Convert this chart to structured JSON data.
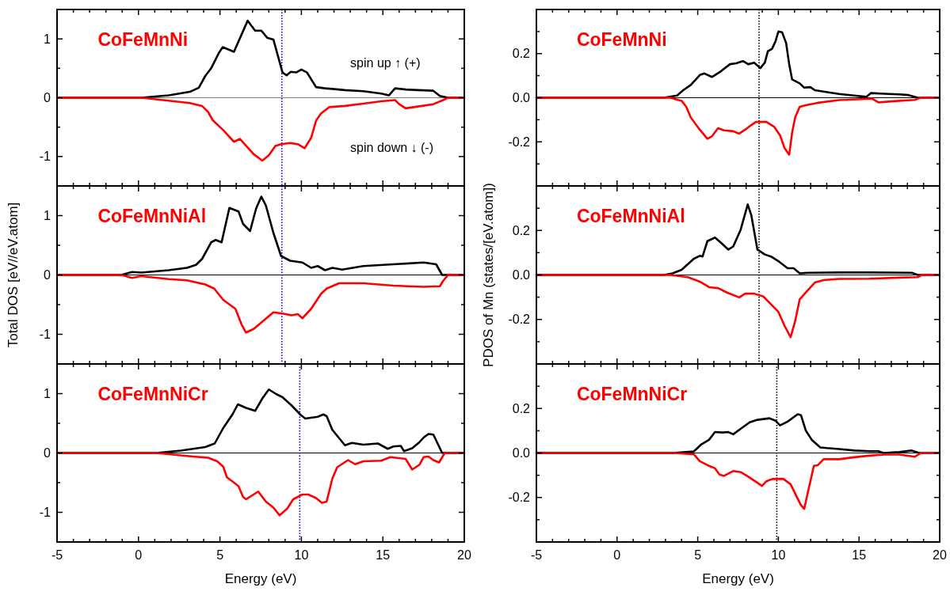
{
  "chart_data": [
    {
      "type": "line",
      "xlim": [
        -5,
        20
      ],
      "ylim": [
        -1.5,
        1.5
      ],
      "xticks": [
        -5,
        {
          "value": -4,
          "label": null
        },
        {
          "value": -3,
          "label": null
        },
        {
          "value": -2,
          "label": null
        },
        {
          "value": -1,
          "label": null
        },
        0,
        {
          "value": 1,
          "label": null
        },
        {
          "value": 2,
          "label": null
        },
        {
          "value": 3,
          "label": null
        },
        {
          "value": 4,
          "label": null
        },
        5,
        {
          "value": 6,
          "label": null
        },
        {
          "value": 7,
          "label": null
        },
        {
          "value": 8,
          "label": null
        },
        {
          "value": 9,
          "label": null
        },
        10,
        {
          "value": 11,
          "label": null
        },
        {
          "value": 12,
          "label": null
        },
        {
          "value": 13,
          "label": null
        },
        {
          "value": 14,
          "label": null
        },
        15,
        {
          "value": 16,
          "label": null
        },
        {
          "value": 17,
          "label": null
        },
        {
          "value": 18,
          "label": null
        },
        {
          "value": 19,
          "label": null
        },
        20
      ],
      "yticks": [
        -1,
        {
          "value": -0.5,
          "label": null
        },
        0,
        {
          "value": 0.5,
          "label": null
        },
        1
      ],
      "tick_labels": "y",
      "annotations": [
        "CoFeMnNi",
        "spin up ↑ (+)",
        "spin down ↓ (-)"
      ],
      "ref_lines": [
        {
          "axis": "y",
          "value": 0,
          "color": "#808080",
          "line_style": "solid"
        },
        {
          "axis": "x",
          "value": 8.8,
          "color": "#0000ff",
          "line_style": "dotted"
        }
      ],
      "series": [
        {
          "color": "#000000",
          "x": [
            -5,
            0.17,
            1.85,
            3.15,
            3.7,
            4.1,
            4.46,
            4.93,
            5.17,
            5.86,
            6.7,
            7.16,
            7.54,
            7.9,
            8.28,
            8.84,
            9.09,
            9.35,
            9.68,
            10.0,
            10.34,
            10.9,
            11.45,
            11.9,
            12.67,
            13.8,
            14.9,
            15.37,
            15.75,
            16.4,
            17.15,
            18.08,
            18.5,
            19.0,
            20
          ],
          "values": [
            0,
            0,
            0.04,
            0.1,
            0.17,
            0.37,
            0.5,
            0.76,
            0.86,
            0.78,
            1.31,
            1.14,
            1.14,
            1.02,
            0.99,
            0.43,
            0.38,
            0.44,
            0.43,
            0.48,
            0.43,
            0.18,
            0.16,
            0.15,
            0.13,
            0.11,
            0.07,
            0.04,
            0.16,
            0.14,
            0.13,
            0.12,
            0.03,
            0,
            0
          ]
        },
        {
          "color": "#ff0000",
          "x": [
            -5,
            0.17,
            1.85,
            3.15,
            3.9,
            4.27,
            4.55,
            5.2,
            5.86,
            6.23,
            7.07,
            7.6,
            8.0,
            8.4,
            8.75,
            9.3,
            9.78,
            10.2,
            10.6,
            10.9,
            11.2,
            11.7,
            12.67,
            13.8,
            14.9,
            15.75,
            16.0,
            16.4,
            17.15,
            18.1,
            18.7,
            19.0,
            20
          ],
          "values": [
            0,
            0,
            -0.05,
            -0.09,
            -0.14,
            -0.24,
            -0.38,
            -0.55,
            -0.75,
            -0.7,
            -0.96,
            -1.07,
            -0.98,
            -0.82,
            -0.79,
            -0.77,
            -0.79,
            -0.86,
            -0.68,
            -0.39,
            -0.27,
            -0.16,
            -0.14,
            -0.1,
            -0.06,
            -0.04,
            -0.11,
            -0.18,
            -0.15,
            -0.11,
            -0.04,
            0,
            0
          ]
        }
      ]
    },
    {
      "type": "line",
      "xlim": [
        -5,
        20
      ],
      "ylim": [
        -1.5,
        1.5
      ],
      "xticks": [
        -5,
        {
          "value": -4,
          "label": null
        },
        {
          "value": -3,
          "label": null
        },
        {
          "value": -2,
          "label": null
        },
        {
          "value": -1,
          "label": null
        },
        0,
        {
          "value": 1,
          "label": null
        },
        {
          "value": 2,
          "label": null
        },
        {
          "value": 3,
          "label": null
        },
        {
          "value": 4,
          "label": null
        },
        5,
        {
          "value": 6,
          "label": null
        },
        {
          "value": 7,
          "label": null
        },
        {
          "value": 8,
          "label": null
        },
        {
          "value": 9,
          "label": null
        },
        10,
        {
          "value": 11,
          "label": null
        },
        {
          "value": 12,
          "label": null
        },
        {
          "value": 13,
          "label": null
        },
        {
          "value": 14,
          "label": null
        },
        15,
        {
          "value": 16,
          "label": null
        },
        {
          "value": 17,
          "label": null
        },
        {
          "value": 18,
          "label": null
        },
        {
          "value": 19,
          "label": null
        },
        20
      ],
      "yticks": [
        -1,
        {
          "value": -0.5,
          "label": null
        },
        0,
        {
          "value": 0.5,
          "label": null
        },
        1
      ],
      "tick_labels": "y",
      "ylabel": "Total DOS [eV//eV.atom]",
      "annotations": [
        "CoFeMnNiAl"
      ],
      "ref_lines": [
        {
          "axis": "y",
          "value": 0,
          "color": "#000000",
          "line_style": "solid"
        },
        {
          "axis": "x",
          "value": 8.8,
          "color": "#0000ff",
          "line_style": "dotted"
        }
      ],
      "series": [
        {
          "color": "#000000",
          "x": [
            -5,
            -1.05,
            -0.4,
            0.17,
            1.85,
            2.97,
            3.53,
            3.9,
            4.46,
            4.74,
            5.1,
            5.58,
            6.14,
            6.42,
            6.85,
            7.22,
            7.54,
            7.82,
            8.28,
            8.75,
            9.3,
            10.06,
            10.6,
            11.0,
            11.45,
            11.9,
            12.5,
            13.8,
            15.65,
            17.5,
            18.27,
            18.64,
            20
          ],
          "values": [
            0,
            0,
            0.05,
            0.04,
            0.08,
            0.12,
            0.17,
            0.27,
            0.55,
            0.59,
            0.55,
            1.13,
            1.07,
            0.86,
            0.74,
            1.12,
            1.32,
            1.17,
            0.71,
            0.32,
            0.24,
            0.21,
            0.12,
            0.15,
            0.08,
            0.12,
            0.09,
            0.15,
            0.18,
            0.21,
            0.18,
            0,
            0
          ]
        },
        {
          "color": "#ff0000",
          "x": [
            -5,
            -1.05,
            -0.4,
            0.17,
            1.85,
            2.97,
            4.1,
            4.65,
            5.2,
            5.95,
            6.32,
            6.6,
            7.07,
            7.63,
            8.28,
            8.84,
            9.4,
            9.78,
            10.06,
            10.6,
            11.2,
            11.55,
            12.3,
            13.8,
            15.65,
            17.5,
            18.5,
            18.7,
            19.0,
            20
          ],
          "values": [
            0,
            0,
            -0.05,
            -0.02,
            -0.07,
            -0.09,
            -0.16,
            -0.23,
            -0.42,
            -0.57,
            -0.83,
            -0.97,
            -0.91,
            -0.78,
            -0.63,
            -0.65,
            -0.68,
            -0.66,
            -0.73,
            -0.57,
            -0.32,
            -0.23,
            -0.14,
            -0.14,
            -0.18,
            -0.2,
            -0.19,
            -0.1,
            0,
            0
          ]
        }
      ]
    },
    {
      "type": "line",
      "xlim": [
        -5,
        20
      ],
      "ylim": [
        -1.5,
        1.5
      ],
      "xticks": [
        -5,
        {
          "value": -4,
          "label": null
        },
        {
          "value": -3,
          "label": null
        },
        {
          "value": -2,
          "label": null
        },
        {
          "value": -1,
          "label": null
        },
        0,
        {
          "value": 1,
          "label": null
        },
        {
          "value": 2,
          "label": null
        },
        {
          "value": 3,
          "label": null
        },
        {
          "value": 4,
          "label": null
        },
        5,
        {
          "value": 6,
          "label": null
        },
        {
          "value": 7,
          "label": null
        },
        {
          "value": 8,
          "label": null
        },
        {
          "value": 9,
          "label": null
        },
        10,
        {
          "value": 11,
          "label": null
        },
        {
          "value": 12,
          "label": null
        },
        {
          "value": 13,
          "label": null
        },
        {
          "value": 14,
          "label": null
        },
        15,
        {
          "value": 16,
          "label": null
        },
        {
          "value": 17,
          "label": null
        },
        {
          "value": 18,
          "label": null
        },
        {
          "value": 19,
          "label": null
        },
        20
      ],
      "yticks": [
        -1,
        {
          "value": -0.5,
          "label": null
        },
        0,
        {
          "value": 0.5,
          "label": null
        },
        1
      ],
      "xlabel": "Energy (eV)",
      "annotations": [
        "CoFeMnNiCr"
      ],
      "ref_lines": [
        {
          "axis": "y",
          "value": 0,
          "color": "#000000",
          "line_style": "solid"
        },
        {
          "axis": "x",
          "value": 9.9,
          "color": "#0000ff",
          "line_style": "dotted"
        }
      ],
      "series": [
        {
          "color": "#000000",
          "x": [
            -5,
            1.1,
            2.6,
            3.34,
            4.1,
            4.68,
            5.2,
            5.77,
            6.1,
            6.6,
            7.16,
            7.63,
            8.0,
            8.47,
            8.84,
            9.4,
            9.96,
            10.24,
            11.0,
            11.35,
            11.55,
            11.9,
            12.67,
            13.1,
            13.8,
            14.7,
            15.3,
            15.65,
            16.1,
            16.3,
            16.8,
            17.24,
            17.5,
            17.8,
            18.1,
            18.64,
            20
          ],
          "values": [
            0,
            0,
            0.04,
            0.07,
            0.1,
            0.16,
            0.42,
            0.65,
            0.82,
            0.76,
            0.71,
            0.93,
            1.07,
            0.99,
            0.94,
            0.8,
            0.64,
            0.58,
            0.61,
            0.65,
            0.62,
            0.39,
            0.13,
            0.17,
            0.14,
            0.16,
            0.07,
            0.11,
            0.12,
            0.03,
            0.08,
            0.18,
            0.26,
            0.32,
            0.31,
            0,
            0
          ]
        },
        {
          "color": "#ff0000",
          "x": [
            -5,
            1.1,
            2.6,
            3.34,
            4.27,
            4.83,
            5.2,
            5.43,
            5.77,
            6.14,
            6.42,
            6.6,
            7.35,
            7.82,
            8.28,
            8.66,
            9.12,
            9.5,
            10.06,
            10.43,
            10.9,
            11.26,
            11.55,
            11.9,
            12.2,
            12.86,
            13.3,
            13.8,
            14.9,
            15.45,
            16.4,
            16.8,
            17.24,
            17.5,
            17.8,
            18.1,
            18.45,
            18.8,
            20
          ],
          "values": [
            0,
            0,
            -0.04,
            -0.06,
            -0.08,
            -0.14,
            -0.23,
            -0.41,
            -0.48,
            -0.56,
            -0.74,
            -0.78,
            -0.65,
            -0.82,
            -0.92,
            -1.05,
            -0.94,
            -0.78,
            -0.7,
            -0.7,
            -0.76,
            -0.84,
            -0.82,
            -0.43,
            -0.24,
            -0.12,
            -0.19,
            -0.14,
            -0.13,
            -0.07,
            -0.1,
            -0.28,
            -0.2,
            -0.07,
            -0.06,
            -0.12,
            -0.16,
            0,
            0
          ]
        }
      ]
    },
    {
      "type": "line",
      "xlim": [
        -5,
        20
      ],
      "ylim": [
        -0.4,
        0.4
      ],
      "xticks": [
        -5,
        {
          "value": -4,
          "label": null
        },
        {
          "value": -3,
          "label": null
        },
        {
          "value": -2,
          "label": null
        },
        {
          "value": -1,
          "label": null
        },
        0,
        {
          "value": 1,
          "label": null
        },
        {
          "value": 2,
          "label": null
        },
        {
          "value": 3,
          "label": null
        },
        {
          "value": 4,
          "label": null
        },
        5,
        {
          "value": 6,
          "label": null
        },
        {
          "value": 7,
          "label": null
        },
        {
          "value": 8,
          "label": null
        },
        {
          "value": 9,
          "label": null
        },
        10,
        {
          "value": 11,
          "label": null
        },
        {
          "value": 12,
          "label": null
        },
        {
          "value": 13,
          "label": null
        },
        {
          "value": 14,
          "label": null
        },
        15,
        {
          "value": 16,
          "label": null
        },
        {
          "value": 17,
          "label": null
        },
        {
          "value": 18,
          "label": null
        },
        {
          "value": 19,
          "label": null
        },
        20
      ],
      "yticks": [
        {
          "value": -0.3,
          "label": null
        },
        -0.2,
        {
          "value": -0.1,
          "label": null
        },
        {
          "value": 0,
          "label": "0.0"
        },
        {
          "value": 0.1,
          "label": null
        },
        0.2,
        {
          "value": 0.3,
          "label": null
        }
      ],
      "tick_labels": "y",
      "annotations": [
        "CoFeMnNi"
      ],
      "ref_lines": [
        {
          "axis": "y",
          "value": 0,
          "color": "#000000",
          "line_style": "solid"
        },
        {
          "axis": "x",
          "value": 8.8,
          "color": "#000000",
          "line_style": "dotted"
        }
      ],
      "series": [
        {
          "color": "#000000",
          "x": [
            -5,
            2.9,
            3.72,
            4.1,
            4.57,
            5.13,
            5.41,
            5.88,
            6.44,
            7.0,
            7.38,
            7.8,
            8.13,
            8.5,
            8.88,
            9.16,
            9.35,
            9.6,
            9.82,
            10.0,
            10.23,
            10.48,
            10.67,
            10.85,
            11.32,
            11.6,
            11.98,
            12.26,
            12.8,
            13.76,
            14.7,
            15.45,
            15.73,
            16.57,
            17.5,
            18.07,
            18.64,
            20
          ],
          "values": [
            0,
            0,
            0.01,
            0.034,
            0.058,
            0.103,
            0.11,
            0.094,
            0.12,
            0.152,
            0.156,
            0.166,
            0.152,
            0.159,
            0.134,
            0.159,
            0.211,
            0.221,
            0.255,
            0.3,
            0.297,
            0.248,
            0.152,
            0.083,
            0.065,
            0.046,
            0.048,
            0.034,
            0.028,
            0.017,
            0.01,
            0.004,
            0.021,
            0.018,
            0.015,
            0.012,
            0,
            0
          ]
        },
        {
          "color": "#ff0000",
          "x": [
            -5,
            3.3,
            4.0,
            4.29,
            4.57,
            5.13,
            5.6,
            5.88,
            6.26,
            6.63,
            7.2,
            7.57,
            7.94,
            8.32,
            8.6,
            9.26,
            9.73,
            10.1,
            10.38,
            10.67,
            10.85,
            11.04,
            11.32,
            11.7,
            12.45,
            13.76,
            14.9,
            15.8,
            16.2,
            17.5,
            18.45,
            18.8,
            20
          ],
          "values": [
            0,
            0,
            -0.014,
            -0.041,
            -0.09,
            -0.145,
            -0.186,
            -0.175,
            -0.138,
            -0.148,
            -0.152,
            -0.163,
            -0.145,
            -0.124,
            -0.11,
            -0.11,
            -0.131,
            -0.17,
            -0.228,
            -0.258,
            -0.159,
            -0.09,
            -0.041,
            -0.034,
            -0.023,
            -0.011,
            -0.007,
            -0.004,
            -0.021,
            -0.014,
            -0.01,
            0,
            0
          ]
        }
      ]
    },
    {
      "type": "line",
      "xlim": [
        -5,
        20
      ],
      "ylim": [
        -0.4,
        0.4
      ],
      "xticks": [
        -5,
        {
          "value": -4,
          "label": null
        },
        {
          "value": -3,
          "label": null
        },
        {
          "value": -2,
          "label": null
        },
        {
          "value": -1,
          "label": null
        },
        0,
        {
          "value": 1,
          "label": null
        },
        {
          "value": 2,
          "label": null
        },
        {
          "value": 3,
          "label": null
        },
        {
          "value": 4,
          "label": null
        },
        5,
        {
          "value": 6,
          "label": null
        },
        {
          "value": 7,
          "label": null
        },
        {
          "value": 8,
          "label": null
        },
        {
          "value": 9,
          "label": null
        },
        10,
        {
          "value": 11,
          "label": null
        },
        {
          "value": 12,
          "label": null
        },
        {
          "value": 13,
          "label": null
        },
        {
          "value": 14,
          "label": null
        },
        15,
        {
          "value": 16,
          "label": null
        },
        {
          "value": 17,
          "label": null
        },
        {
          "value": 18,
          "label": null
        },
        {
          "value": 19,
          "label": null
        },
        20
      ],
      "yticks": [
        {
          "value": -0.3,
          "label": null
        },
        -0.2,
        {
          "value": -0.1,
          "label": null
        },
        {
          "value": 0,
          "label": "0.0"
        },
        {
          "value": 0.1,
          "label": null
        },
        0.2,
        {
          "value": 0.3,
          "label": null
        }
      ],
      "tick_labels": "y",
      "ylabel": "PDOS of Mn (states/[eV.atom])",
      "annotations": [
        "CoFeMnNiAl"
      ],
      "ref_lines": [
        {
          "axis": "y",
          "value": 0,
          "color": "#000000",
          "line_style": "solid"
        },
        {
          "axis": "x",
          "value": 8.8,
          "color": "#000000",
          "line_style": "dotted"
        }
      ],
      "series": [
        {
          "color": "#000000",
          "x": [
            -5,
            2.9,
            3.44,
            4.0,
            4.38,
            4.76,
            5.13,
            5.3,
            5.6,
            6.07,
            6.44,
            6.9,
            7.2,
            7.66,
            8.1,
            8.32,
            8.7,
            9.16,
            9.54,
            10.0,
            10.57,
            10.95,
            11.32,
            11.9,
            13.76,
            15.64,
            18.27,
            18.64,
            20
          ],
          "values": [
            0,
            0,
            0.007,
            0.023,
            0.048,
            0.073,
            0.086,
            0.083,
            0.152,
            0.168,
            0.145,
            0.114,
            0.128,
            0.203,
            0.317,
            0.269,
            0.114,
            0.092,
            0.083,
            0.062,
            0.03,
            0.03,
            0.007,
            0.01,
            0.011,
            0.011,
            0.01,
            0,
            0
          ]
        },
        {
          "color": "#ff0000",
          "x": [
            -5,
            3.3,
            4.38,
            5.13,
            5.7,
            6.26,
            6.82,
            7.57,
            7.94,
            8.5,
            9.07,
            9.63,
            10.0,
            10.38,
            10.76,
            11.04,
            11.32,
            11.7,
            12.26,
            12.8,
            13.76,
            15.64,
            17.5,
            18.64,
            18.9,
            20
          ],
          "values": [
            0,
            0,
            -0.01,
            -0.03,
            -0.055,
            -0.059,
            -0.079,
            -0.101,
            -0.084,
            -0.084,
            -0.097,
            -0.138,
            -0.166,
            -0.228,
            -0.28,
            -0.207,
            -0.11,
            -0.079,
            -0.034,
            -0.023,
            -0.018,
            -0.017,
            -0.012,
            -0.01,
            0,
            0
          ]
        }
      ]
    },
    {
      "type": "line",
      "xlim": [
        -5,
        20
      ],
      "ylim": [
        -0.4,
        0.4
      ],
      "xticks": [
        -5,
        {
          "value": -4,
          "label": null
        },
        {
          "value": -3,
          "label": null
        },
        {
          "value": -2,
          "label": null
        },
        {
          "value": -1,
          "label": null
        },
        0,
        {
          "value": 1,
          "label": null
        },
        {
          "value": 2,
          "label": null
        },
        {
          "value": 3,
          "label": null
        },
        {
          "value": 4,
          "label": null
        },
        5,
        {
          "value": 6,
          "label": null
        },
        {
          "value": 7,
          "label": null
        },
        {
          "value": 8,
          "label": null
        },
        {
          "value": 9,
          "label": null
        },
        10,
        {
          "value": 11,
          "label": null
        },
        {
          "value": 12,
          "label": null
        },
        {
          "value": 13,
          "label": null
        },
        {
          "value": 14,
          "label": null
        },
        15,
        {
          "value": 16,
          "label": null
        },
        {
          "value": 17,
          "label": null
        },
        {
          "value": 18,
          "label": null
        },
        {
          "value": 19,
          "label": null
        },
        20
      ],
      "yticks": [
        {
          "value": -0.3,
          "label": null
        },
        -0.2,
        {
          "value": -0.1,
          "label": null
        },
        {
          "value": 0,
          "label": "0.0"
        },
        {
          "value": 0.1,
          "label": null
        },
        0.2,
        {
          "value": 0.3,
          "label": null
        }
      ],
      "xlabel": "Energy (eV)",
      "annotations": [
        "CoFeMnNiCr"
      ],
      "ref_lines": [
        {
          "axis": "y",
          "value": 0,
          "color": "#000000",
          "line_style": "solid"
        },
        {
          "axis": "x",
          "value": 9.9,
          "color": "#000000",
          "line_style": "dotted"
        }
      ],
      "series": [
        {
          "color": "#000000",
          "x": [
            -5,
            3.44,
            4.76,
            5.23,
            5.7,
            6.07,
            6.54,
            6.9,
            7.2,
            7.76,
            8.22,
            8.7,
            9.45,
            9.82,
            10.1,
            10.57,
            11.2,
            11.4,
            11.7,
            12.07,
            12.6,
            13.0,
            13.76,
            14.7,
            15.64,
            16.2,
            16.5,
            17.5,
            18.27,
            18.73,
            20
          ],
          "values": [
            0,
            0,
            0.007,
            0.039,
            0.059,
            0.094,
            0.092,
            0.094,
            0.084,
            0.114,
            0.138,
            0.149,
            0.156,
            0.145,
            0.124,
            0.141,
            0.174,
            0.17,
            0.101,
            0.059,
            0.025,
            0.022,
            0.018,
            0.011,
            0.008,
            0.008,
            0,
            0.004,
            0.011,
            0,
            0
          ]
        },
        {
          "color": "#ff0000",
          "x": [
            -5,
            3.6,
            4.76,
            5.13,
            5.7,
            6.07,
            6.35,
            6.63,
            7.2,
            7.66,
            8.13,
            8.7,
            8.98,
            9.26,
            9.63,
            10.3,
            10.76,
            11.13,
            11.4,
            11.6,
            11.9,
            12.2,
            12.45,
            12.8,
            13.76,
            14.7,
            15.64,
            16.57,
            17.5,
            18.45,
            18.83,
            20
          ],
          "values": [
            0,
            0,
            -0.006,
            -0.037,
            -0.058,
            -0.069,
            -0.097,
            -0.103,
            -0.081,
            -0.086,
            -0.106,
            -0.134,
            -0.148,
            -0.127,
            -0.117,
            -0.116,
            -0.141,
            -0.196,
            -0.234,
            -0.251,
            -0.154,
            -0.058,
            -0.055,
            -0.028,
            -0.028,
            -0.019,
            -0.012,
            -0.007,
            -0.007,
            -0.017,
            0,
            0
          ]
        }
      ]
    }
  ]
}
